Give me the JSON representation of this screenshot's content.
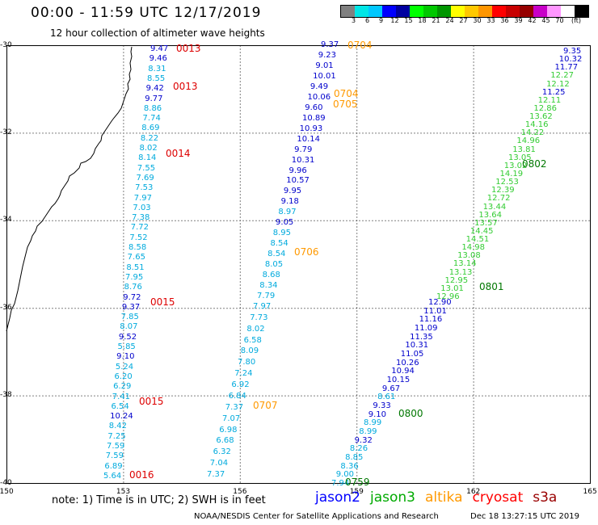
{
  "header": {
    "title": "00:00 - 11:59 UTC 12/17/2019",
    "subtitle": "12 hour collection of altimeter wave heights"
  },
  "colorbar": {
    "colors": [
      "#808080",
      "#00e6e6",
      "#00c8ff",
      "#0000ff",
      "#0000a0",
      "#00ff00",
      "#00c800",
      "#009600",
      "#ffff00",
      "#ffc800",
      "#ff9600",
      "#ff0000",
      "#c80000",
      "#960000",
      "#c800c8",
      "#ff96ff",
      "#ffffff",
      "#000000"
    ],
    "labels": [
      "3",
      "6",
      "9",
      "12",
      "15",
      "18",
      "21",
      "24",
      "27",
      "30",
      "33",
      "36",
      "39",
      "42",
      "45",
      "70"
    ],
    "unit": "(ft)"
  },
  "map": {
    "y_ticks": [
      "-30",
      "-32",
      "-34",
      "-36",
      "-38",
      "-40"
    ],
    "x_ticks": [
      "150",
      "153",
      "156",
      "159",
      "162",
      "165"
    ],
    "lon_range": [
      150,
      165
    ],
    "lat_range": [
      -30,
      -40
    ]
  },
  "tracks": {
    "track1": {
      "color": "#00aadd",
      "values": [
        "9.47",
        "9.46",
        "8.31",
        "8.55",
        "9.42",
        "9.77",
        "8.86",
        "7.74",
        "8.69",
        "8.22",
        "8.02",
        "8.14",
        "7.55",
        "7.69",
        "7.53",
        "7.97",
        "7.03",
        "7.38",
        "7.72",
        "7.52",
        "8.58",
        "7.65",
        "8.51",
        "7.95",
        "8.76",
        "9.72",
        "9.37",
        "7.85",
        "8.07",
        "9.52",
        "5.85",
        "9.10",
        "5.24",
        "6.20",
        "6.29",
        "7.41",
        "6.54",
        "10.24",
        "8.42",
        "7.25",
        "7.59",
        "7.59",
        "6.89",
        "5.64"
      ],
      "colors": [
        "#0000cc",
        "#0000cc",
        "#00aadd",
        "#00aadd",
        "#0000cc",
        "#0000cc",
        "#00aadd",
        "#00aadd",
        "#00aadd",
        "#00aadd",
        "#00aadd",
        "#00aadd",
        "#00aadd",
        "#00aadd",
        "#00aadd",
        "#00aadd",
        "#00aadd",
        "#00aadd",
        "#00aadd",
        "#00aadd",
        "#00aadd",
        "#00aadd",
        "#00aadd",
        "#00aadd",
        "#00aadd",
        "#0000cc",
        "#0000cc",
        "#00aadd",
        "#00aadd",
        "#0000cc",
        "#00aadd",
        "#0000cc",
        "#00aadd",
        "#00aadd",
        "#00aadd",
        "#00aadd",
        "#00aadd",
        "#0000cc",
        "#00aadd",
        "#00aadd",
        "#00aadd",
        "#00aadd",
        "#00aadd",
        "#00aadd"
      ]
    },
    "track2": {
      "values": [
        "7.97",
        "7.73",
        "8.02",
        "6.58",
        "8.09",
        "7.80",
        "7.24",
        "6.92",
        "6.84",
        "7.37",
        "7.07",
        "6.98",
        "6.68",
        "6.32",
        "7.04",
        "7.37"
      ]
    },
    "track3": {
      "values": [
        "9.37",
        "9.23",
        "9.01",
        "10.01",
        "9.49",
        "10.06",
        "9.60",
        "10.89",
        "10.93",
        "10.14",
        "9.79",
        "10.31",
        "9.96",
        "10.57",
        "9.95",
        "9.18",
        "8.97",
        "9.05",
        "8.95",
        "8.54",
        "8.54",
        "8.05",
        "8.68",
        "8.34",
        "7.79"
      ],
      "colors": [
        "#0000cc",
        "#0000cc",
        "#0000cc",
        "#0000cc",
        "#0000cc",
        "#0000cc",
        "#0000cc",
        "#0000cc",
        "#0000cc",
        "#0000cc",
        "#0000cc",
        "#0000cc",
        "#0000cc",
        "#0000cc",
        "#0000cc",
        "#0000cc",
        "#00aadd",
        "#0000cc",
        "#00aadd",
        "#00aadd",
        "#00aadd",
        "#00aadd",
        "#00aadd",
        "#00aadd",
        "#00aadd"
      ]
    },
    "track4": {
      "values": [
        "12.90",
        "11.01",
        "11.16",
        "11.09",
        "11.35",
        "10.31",
        "11.05",
        "10.26",
        "10.94",
        "10.15",
        "9.67",
        "8.61",
        "9.33",
        "9.10",
        "8.99",
        "8.99",
        "9.32",
        "8.26",
        "8.85",
        "8.36",
        "9.00",
        "7.94"
      ],
      "colors": [
        "#0000cc",
        "#0000cc",
        "#0000cc",
        "#0000cc",
        "#0000cc",
        "#0000cc",
        "#0000cc",
        "#0000cc",
        "#0000cc",
        "#0000cc",
        "#0000cc",
        "#00aadd",
        "#0000cc",
        "#0000cc",
        "#00aadd",
        "#00aadd",
        "#0000cc",
        "#00aadd",
        "#00aadd",
        "#00aadd",
        "#00aadd",
        "#00aadd"
      ]
    },
    "track5": {
      "values": [
        "9.35",
        "10.32",
        "11.77",
        "12.27",
        "12.12",
        "11.25",
        "12.11",
        "12.86",
        "13.62",
        "14.16",
        "14.22",
        "14.96",
        "13.81",
        "13.05",
        "13.02",
        "14.19",
        "12.53",
        "12.39",
        "12.72",
        "13.44",
        "13.64",
        "13.57",
        "14.45",
        "14.51",
        "14.98",
        "13.08",
        "13.14",
        "13.13",
        "12.95",
        "13.01",
        "12.96"
      ],
      "colors": [
        "#0000cc",
        "#0000cc",
        "#0000cc",
        "#33cc33",
        "#33cc33",
        "#0000cc",
        "#33cc33",
        "#33cc33",
        "#33cc33",
        "#33cc33",
        "#33cc33",
        "#33cc33",
        "#33cc33",
        "#33cc33",
        "#33cc33",
        "#33cc33",
        "#33cc33",
        "#33cc33",
        "#33cc33",
        "#33cc33",
        "#33cc33",
        "#33cc33",
        "#33cc33",
        "#33cc33",
        "#33cc33",
        "#33cc33",
        "#33cc33",
        "#33cc33",
        "#33cc33",
        "#33cc33",
        "#33cc33"
      ]
    }
  },
  "time_labels": [
    {
      "text": "0013",
      "color": "#dd0000"
    },
    {
      "text": "0013",
      "color": "#dd0000"
    },
    {
      "text": "0014",
      "color": "#dd0000"
    },
    {
      "text": "0015",
      "color": "#dd0000"
    },
    {
      "text": "0015",
      "color": "#dd0000"
    },
    {
      "text": "0016",
      "color": "#dd0000"
    },
    {
      "text": "0707",
      "color": "#ff9900"
    },
    {
      "text": "0706",
      "color": "#ff9900"
    },
    {
      "text": "0704",
      "color": "#ff9900"
    },
    {
      "text": "0704",
      "color": "#ff9900"
    },
    {
      "text": "0705",
      "color": "#ff9900"
    },
    {
      "text": "0802",
      "color": "#007700"
    },
    {
      "text": "0801",
      "color": "#007700"
    },
    {
      "text": "0800",
      "color": "#007700"
    },
    {
      "text": "0759",
      "color": "#007700"
    }
  ],
  "note": "note: 1) Time is in UTC; 2) SWH is in feet",
  "legend": [
    {
      "text": "jason2",
      "color": "#0000ff"
    },
    {
      "text": "jason3",
      "color": "#00aa00"
    },
    {
      "text": "altika",
      "color": "#ff9900"
    },
    {
      "text": "cryosat",
      "color": "#ff0000"
    },
    {
      "text": "s3a",
      "color": "#990000"
    }
  ],
  "footer": {
    "agency": "NOAA/NESDIS Center for Satellite Applications and Research",
    "timestamp": "Dec 18 13:27:15 UTC 2019"
  }
}
